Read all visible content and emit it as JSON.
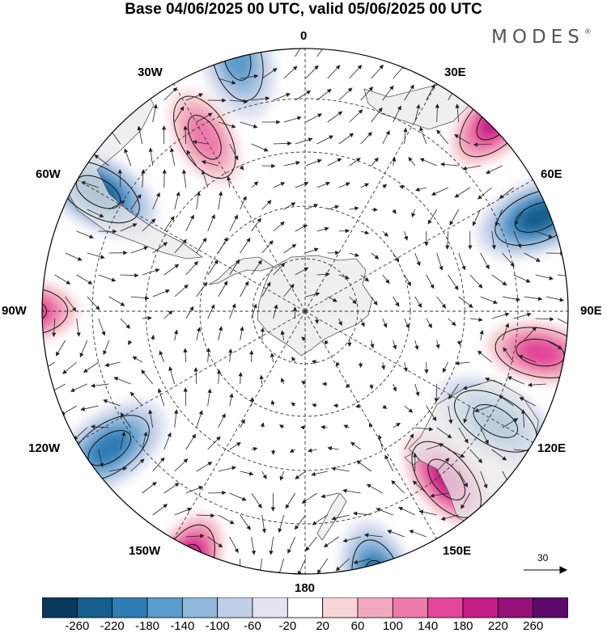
{
  "title": "Base 04/06/2025 00 UTC, valid 05/06/2025 00 UTC",
  "brand": {
    "text": "MODES",
    "mark": "®"
  },
  "longitude_labels": {
    "lon_0": "0",
    "lon_30e": "30E",
    "lon_60e": "60E",
    "lon_90e": "90E",
    "lon_120e": "120E",
    "lon_150e": "150E",
    "lon_180": "180",
    "lon_150w": "150W",
    "lon_120w": "120W",
    "lon_90w": "90W",
    "lon_60w": "60W",
    "lon_30w": "30W"
  },
  "reference_vector": {
    "value": "30"
  },
  "colorbar": {
    "colors": [
      "#0a3a5e",
      "#155e8e",
      "#2f7db5",
      "#5a9ccb",
      "#8fb8da",
      "#bfcfe8",
      "#e2e4f2",
      "#ffffff",
      "#f7d4d6",
      "#f2a9bf",
      "#ee7aaa",
      "#e2479a",
      "#c51c86",
      "#931076",
      "#5c0b6b"
    ],
    "labels": [
      "-260",
      "-220",
      "-180",
      "-140",
      "-100",
      "-60",
      "-20",
      "20",
      "60",
      "100",
      "140",
      "180",
      "220",
      "260"
    ]
  },
  "map": {
    "projection": "south-polar-stereographic",
    "land_color": "#e8e8e8",
    "anomaly_centers": [
      {
        "type": "positive",
        "value": 180,
        "lon_lat": [
          45,
          -47
        ]
      },
      {
        "type": "negative",
        "value": -180,
        "lon_lat": [
          68,
          -50
        ]
      },
      {
        "type": "positive",
        "value": 140,
        "lon_lat": [
          100,
          -52
        ]
      },
      {
        "type": "negative",
        "value": -140,
        "lon_lat": [
          120,
          -55
        ]
      },
      {
        "type": "positive",
        "value": 180,
        "lon_lat": [
          140,
          -55
        ]
      },
      {
        "type": "negative",
        "value": -180,
        "lon_lat": [
          165,
          -45
        ]
      },
      {
        "type": "positive",
        "value": 220,
        "lon_lat": [
          -155,
          -45
        ]
      },
      {
        "type": "negative",
        "value": -140,
        "lon_lat": [
          -125,
          -52
        ]
      },
      {
        "type": "positive",
        "value": 180,
        "lon_lat": [
          -90,
          -45
        ]
      },
      {
        "type": "negative",
        "value": -180,
        "lon_lat": [
          -60,
          -52
        ]
      },
      {
        "type": "positive",
        "value": 100,
        "lon_lat": [
          -30,
          -58
        ]
      },
      {
        "type": "negative",
        "value": -100,
        "lon_lat": [
          -15,
          -48
        ]
      }
    ]
  }
}
